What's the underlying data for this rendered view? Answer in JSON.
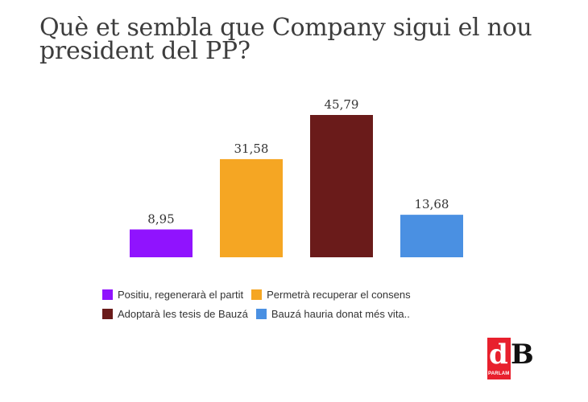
{
  "chart_data": {
    "type": "bar",
    "title": "Què et sembla que Company sigui el nou president del PP?",
    "categories": [
      "Positiu, regenerarà el partit",
      "Permetrà recuperar el consens",
      "Adoptarà les tesis de Bauzá",
      "Bauzá hauria donat més vita.."
    ],
    "values": [
      8.95,
      31.58,
      45.79,
      13.68
    ],
    "value_labels": [
      "8,95",
      "31,58",
      "45,79",
      "13,68"
    ],
    "colors": [
      "#9013fe",
      "#f5a623",
      "#6a1b1a",
      "#4a90e2"
    ],
    "xlabel": "",
    "ylabel": "",
    "ylim": [
      0,
      45.79
    ],
    "grid": false,
    "legend_position": "bottom"
  },
  "legend": {
    "rows": [
      [
        {
          "label": "Positiu, regenerarà el partit",
          "color": "#9013fe"
        },
        {
          "label": "Permetrà recuperar el consens",
          "color": "#f5a623"
        }
      ],
      [
        {
          "label": "Adoptarà les tesis de Bauzá",
          "color": "#6a1b1a"
        },
        {
          "label": "Bauzá hauria donat més vita..",
          "color": "#4a90e2"
        }
      ]
    ]
  },
  "logo": {
    "letter_d": "d",
    "letter_b": "B",
    "tagline": "PARLAM COM TU"
  }
}
